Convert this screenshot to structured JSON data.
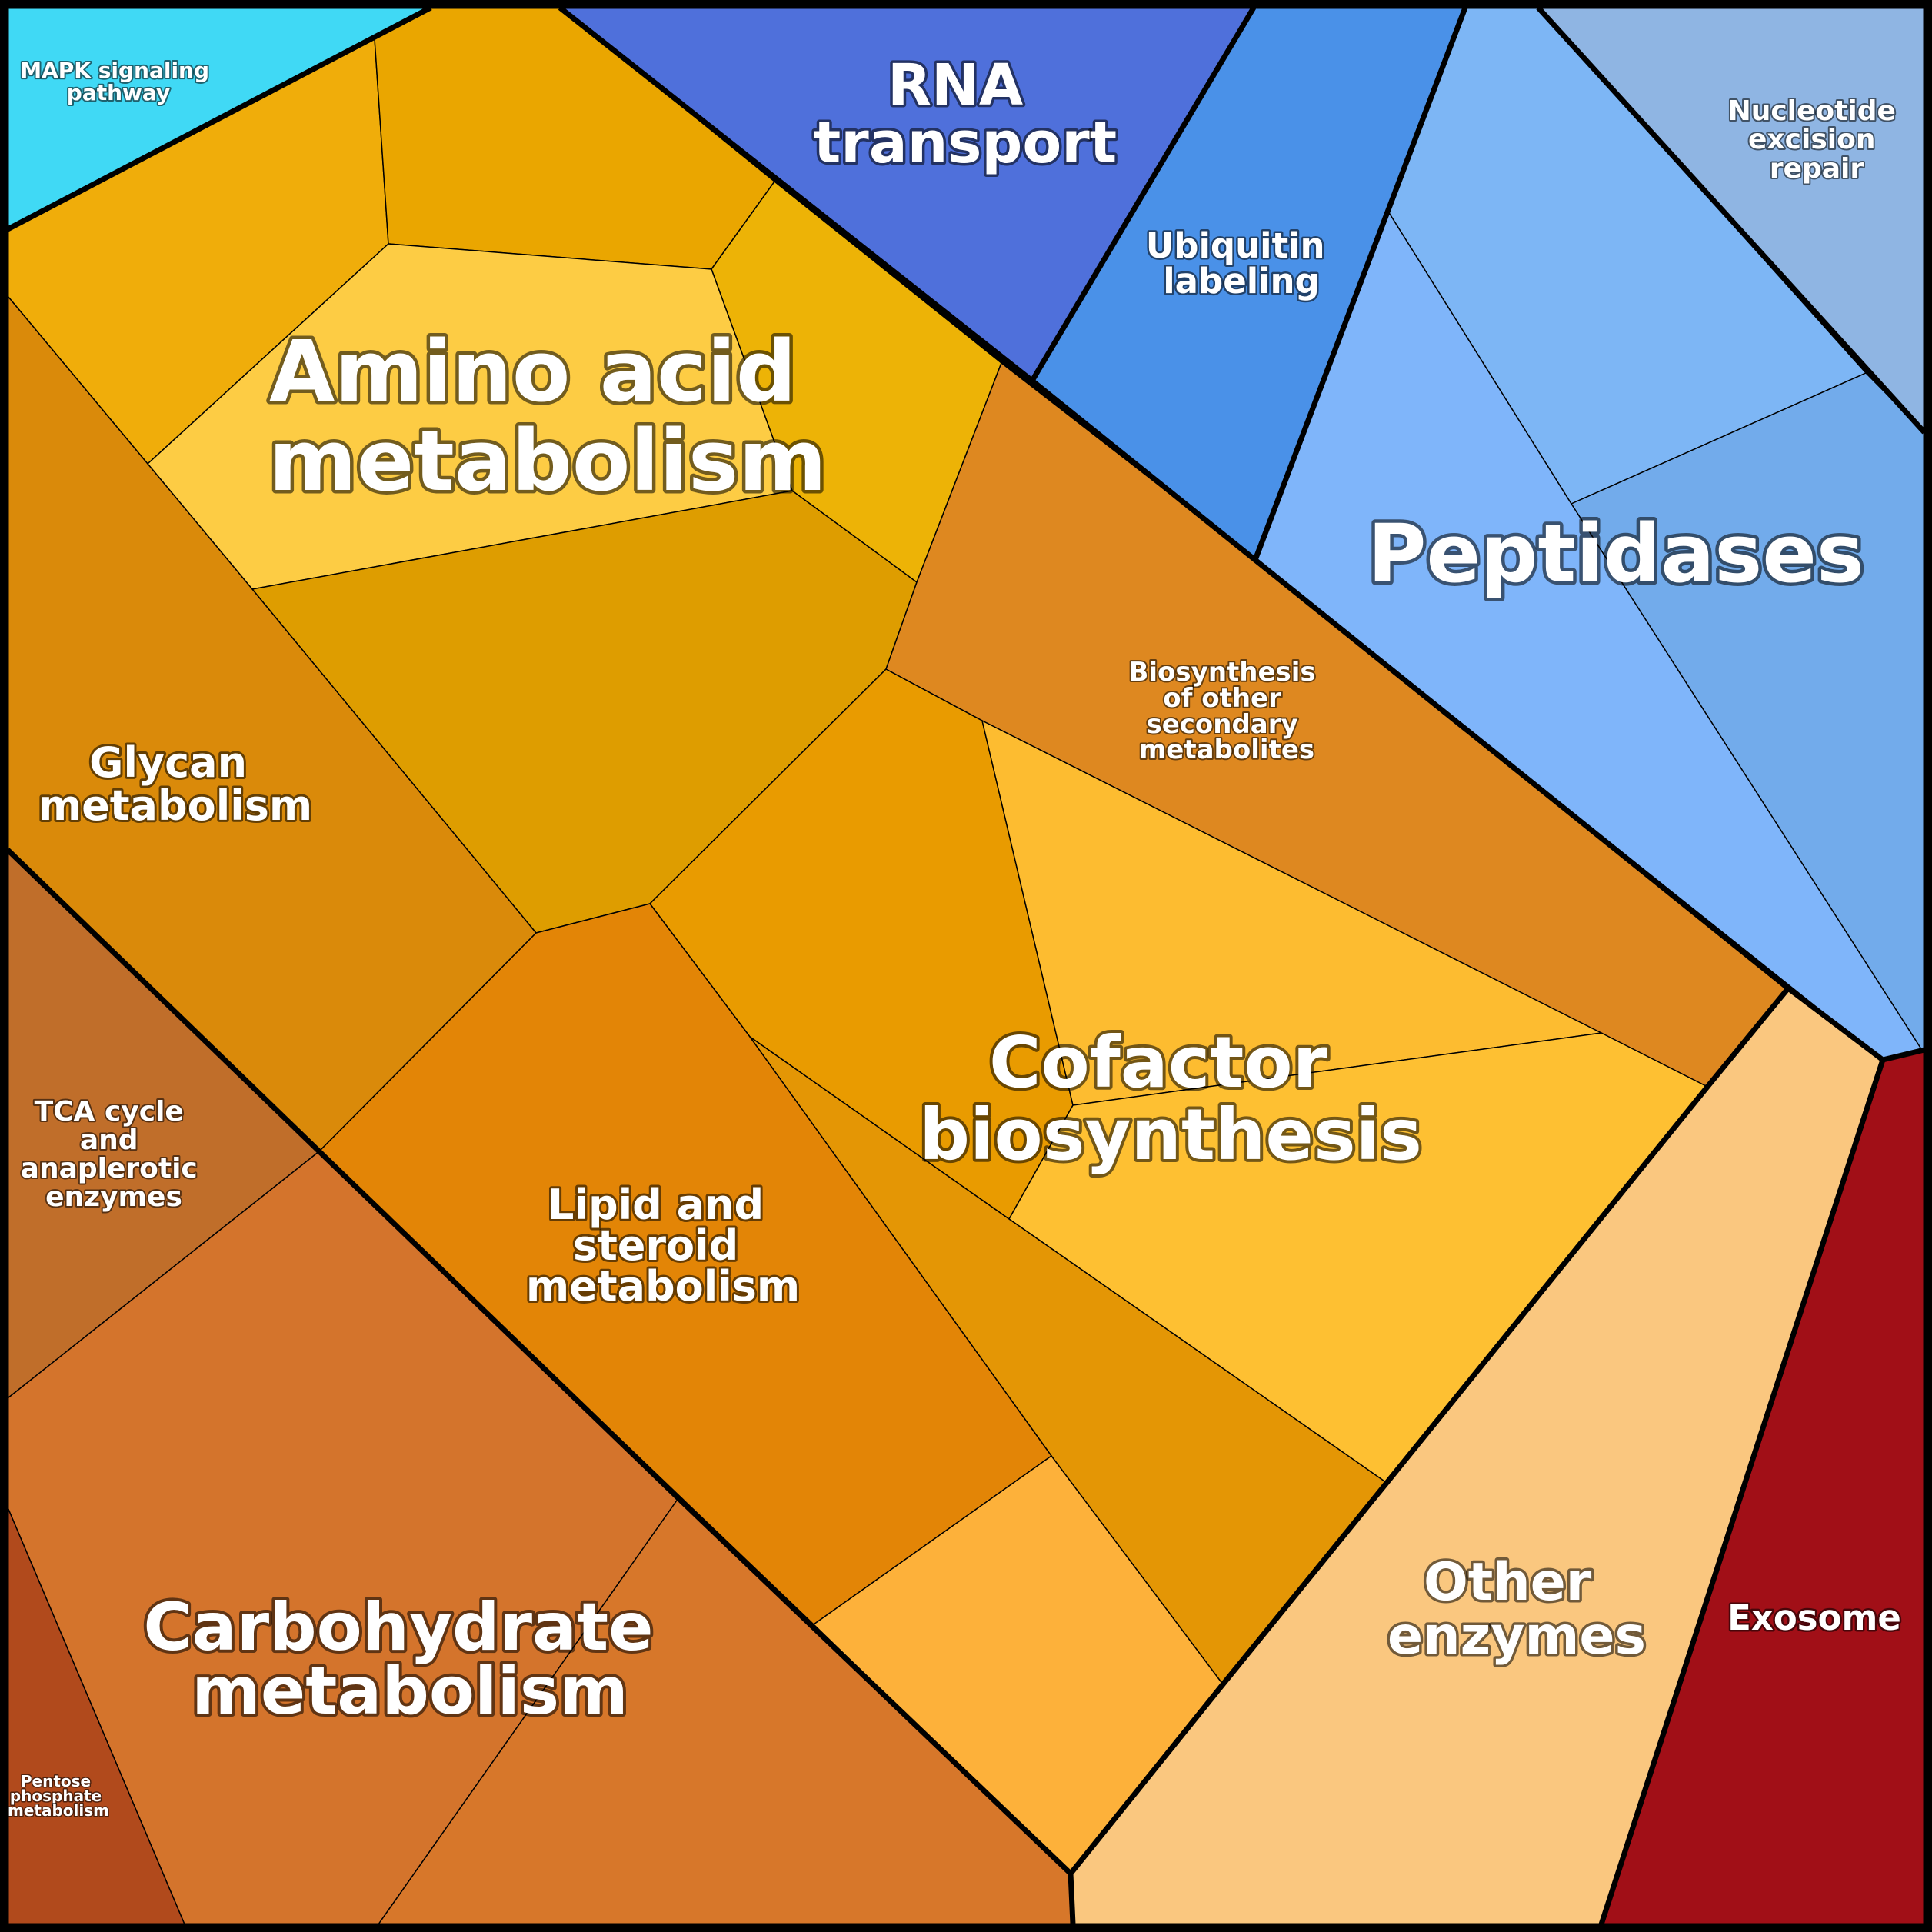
{
  "diagram": {
    "type": "voronoi-treemap",
    "groups": [
      {
        "id": "mapk",
        "label": [
          "MAPK signaling",
          "pathway"
        ],
        "color": "#40d9f5"
      },
      {
        "id": "amino",
        "label": [
          "Amino acid",
          "metabolism"
        ],
        "color": "#f0ad00"
      },
      {
        "id": "rna",
        "label": [
          "RNA",
          "transport"
        ],
        "color": "#4f70db"
      },
      {
        "id": "ubiquitin",
        "label": [
          "Ubiquitin",
          "labeling"
        ],
        "color": "#4a91e8"
      },
      {
        "id": "nucleotide",
        "label": [
          "Nucleotide",
          "excision",
          "repair"
        ],
        "color": "#8fb5e3"
      },
      {
        "id": "peptidases",
        "label": [
          "Peptidases"
        ],
        "color": "#7fb5fa"
      },
      {
        "id": "glycan",
        "label": [
          "Glycan",
          "metabolism"
        ],
        "color": "#da8a0a"
      },
      {
        "id": "biosynth",
        "label": [
          "Biosynthesis",
          "of other",
          "secondary",
          "metabolites"
        ],
        "color": "#de8820"
      },
      {
        "id": "cofactor",
        "label": [
          "Cofactor",
          "biosynthesis"
        ],
        "color": "#fdbe32"
      },
      {
        "id": "lipid",
        "label": [
          "Lipid and",
          "steroid",
          "metabolism"
        ],
        "color": "#e38506"
      },
      {
        "id": "tca",
        "label": [
          "TCA cycle",
          "and",
          "anaplerotic",
          "enzymes"
        ],
        "color": "#c06e2a"
      },
      {
        "id": "carbohydrate",
        "label": [
          "Carbohydrate",
          "metabolism"
        ],
        "color": "#d5752c"
      },
      {
        "id": "pentose",
        "label": [
          "Pentose",
          "phosphate",
          "metabolism"
        ],
        "color": "#b14a1c"
      },
      {
        "id": "other",
        "label": [
          "Other",
          "enzymes"
        ],
        "color": "#fac77f"
      },
      {
        "id": "exosome",
        "label": [
          "Exosome"
        ],
        "color": "#a10f17"
      }
    ]
  }
}
